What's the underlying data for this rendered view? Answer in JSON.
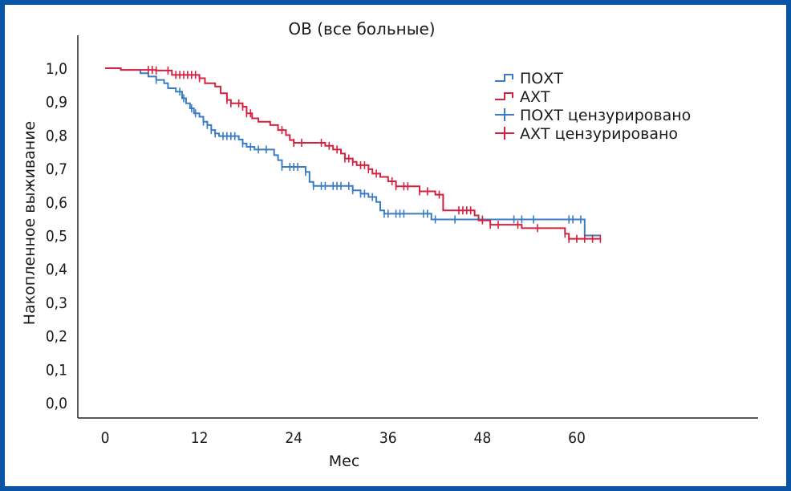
{
  "chart_data": {
    "type": "line",
    "subtype": "kaplan-meier step",
    "title": "ОВ (все больные)",
    "xlabel": "Мес",
    "ylabel": "Накопленное выживание",
    "xlim": [
      -3,
      84
    ],
    "ylim": [
      0,
      1.0
    ],
    "x_ticks": [
      0,
      12,
      24,
      36,
      48,
      60
    ],
    "x_tick_labels": [
      "0",
      "12",
      "24",
      "36",
      "48",
      "60"
    ],
    "y_ticks": [
      0.0,
      0.1,
      0.2,
      0.3,
      0.4,
      0.5,
      0.6,
      0.7,
      0.8,
      0.9,
      1.0
    ],
    "y_tick_labels": [
      "0,0",
      "0,1",
      "0,2",
      "0,3",
      "0,4",
      "0,5",
      "0,6",
      "0,7",
      "0,8",
      "0,9",
      "1,0"
    ],
    "grid": false,
    "legend_position": "top-right",
    "legend": [
      {
        "label": "ПОХТ",
        "kind": "line",
        "color": "#3a7cc4"
      },
      {
        "label": "АХТ",
        "kind": "line",
        "color": "#d6203f"
      },
      {
        "label": "ПОХТ цензурировано",
        "kind": "censor",
        "color": "#3a7cc4"
      },
      {
        "label": "АХТ цензурировано",
        "kind": "censor",
        "color": "#d6203f"
      }
    ],
    "series": [
      {
        "name": "ПОХТ",
        "color": "#3a7cc4",
        "steps": [
          [
            0,
            1.0
          ],
          [
            2,
            0.995
          ],
          [
            4.5,
            0.985
          ],
          [
            5.5,
            0.975
          ],
          [
            6.5,
            0.965
          ],
          [
            7.5,
            0.955
          ],
          [
            8,
            0.94
          ],
          [
            9,
            0.93
          ],
          [
            9.8,
            0.91
          ],
          [
            10.3,
            0.895
          ],
          [
            10.8,
            0.88
          ],
          [
            11.3,
            0.865
          ],
          [
            12,
            0.855
          ],
          [
            12.5,
            0.84
          ],
          [
            13,
            0.83
          ],
          [
            13.5,
            0.815
          ],
          [
            14,
            0.805
          ],
          [
            14.5,
            0.797
          ],
          [
            17,
            0.787
          ],
          [
            17.5,
            0.775
          ],
          [
            18,
            0.765
          ],
          [
            19,
            0.757
          ],
          [
            21.5,
            0.74
          ],
          [
            22,
            0.725
          ],
          [
            22.5,
            0.705
          ],
          [
            25.5,
            0.69
          ],
          [
            26,
            0.66
          ],
          [
            26.5,
            0.648
          ],
          [
            31.5,
            0.635
          ],
          [
            32.5,
            0.625
          ],
          [
            33.5,
            0.615
          ],
          [
            34.5,
            0.6
          ],
          [
            35,
            0.575
          ],
          [
            35.5,
            0.565
          ],
          [
            41.5,
            0.548
          ],
          [
            61,
            0.5
          ],
          [
            63,
            0.5
          ]
        ],
        "censored": [
          6.5,
          9.5,
          10,
          11,
          11.5,
          12.5,
          13,
          13.5,
          14,
          15,
          15.5,
          16,
          16.5,
          17.5,
          18.5,
          19.5,
          20.5,
          22.5,
          23.5,
          24,
          24.5,
          25.5,
          26.5,
          27.5,
          28,
          29,
          29.5,
          30,
          31,
          31.5,
          32.5,
          33,
          34,
          35.5,
          36,
          37,
          37.5,
          38,
          40.5,
          41,
          42,
          44.5,
          48,
          52,
          53,
          54.5,
          59,
          59.5,
          60.5
        ]
      },
      {
        "name": "АХТ",
        "color": "#d6203f",
        "steps": [
          [
            0,
            1.0
          ],
          [
            2,
            0.995
          ],
          [
            6.5,
            0.993
          ],
          [
            8.5,
            0.98
          ],
          [
            12,
            0.97
          ],
          [
            12.7,
            0.955
          ],
          [
            14,
            0.945
          ],
          [
            14.7,
            0.925
          ],
          [
            15.5,
            0.905
          ],
          [
            16,
            0.895
          ],
          [
            17.5,
            0.885
          ],
          [
            18,
            0.865
          ],
          [
            18.7,
            0.85
          ],
          [
            19.5,
            0.84
          ],
          [
            21,
            0.83
          ],
          [
            22,
            0.815
          ],
          [
            23,
            0.8
          ],
          [
            23.5,
            0.785
          ],
          [
            24,
            0.777
          ],
          [
            28,
            0.768
          ],
          [
            29,
            0.757
          ],
          [
            30,
            0.745
          ],
          [
            30.5,
            0.73
          ],
          [
            31.5,
            0.72
          ],
          [
            32,
            0.71
          ],
          [
            33.5,
            0.698
          ],
          [
            34,
            0.685
          ],
          [
            35,
            0.675
          ],
          [
            36,
            0.662
          ],
          [
            37,
            0.647
          ],
          [
            40,
            0.632
          ],
          [
            42,
            0.622
          ],
          [
            43,
            0.575
          ],
          [
            44.5,
            0.575
          ],
          [
            47,
            0.56
          ],
          [
            47.5,
            0.545
          ],
          [
            49,
            0.532
          ],
          [
            53,
            0.522
          ],
          [
            58.5,
            0.505
          ],
          [
            59,
            0.49
          ],
          [
            63,
            0.49
          ]
        ],
        "censored": [
          5.5,
          6,
          6.5,
          8,
          9,
          9.5,
          10,
          10.5,
          11,
          11.5,
          12,
          15.5,
          16,
          17,
          17.5,
          18,
          18.5,
          22.5,
          24,
          25,
          27.5,
          28.5,
          29.5,
          30.5,
          31,
          31.5,
          32.5,
          33,
          33.5,
          34.5,
          36.5,
          37,
          38,
          38.5,
          40,
          41,
          42.5,
          45,
          45.5,
          46,
          46.5,
          48,
          49,
          50,
          52.5,
          55,
          58.5,
          59,
          60,
          61,
          62,
          63
        ]
      }
    ]
  }
}
